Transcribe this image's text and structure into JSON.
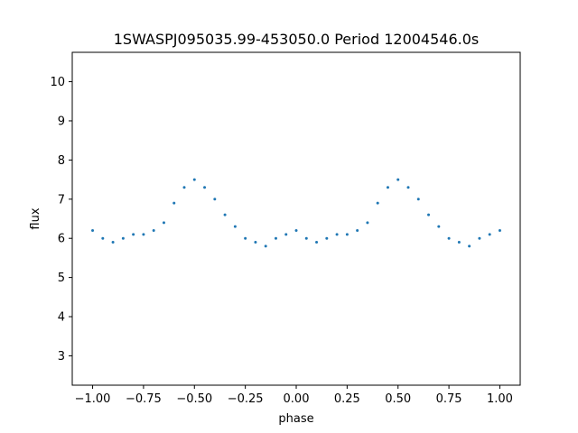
{
  "chart_data": {
    "type": "scatter",
    "title": "1SWASPJ095035.99-453050.0 Period 12004546.0s",
    "xlabel": "phase",
    "ylabel": "flux",
    "xlim": [
      -1.1,
      1.1
    ],
    "ylim": [
      2.25,
      10.75
    ],
    "xticks": [
      -1.0,
      -0.75,
      -0.5,
      -0.25,
      0.0,
      0.25,
      0.5,
      0.75,
      1.0
    ],
    "xtick_labels": [
      "−1.00",
      "−0.75",
      "−0.50",
      "−0.25",
      "0.00",
      "0.25",
      "0.50",
      "0.75",
      "1.00"
    ],
    "yticks": [
      3,
      4,
      5,
      6,
      7,
      8,
      9,
      10
    ],
    "ytick_labels": [
      "3",
      "4",
      "5",
      "6",
      "7",
      "8",
      "9",
      "10"
    ],
    "grid": false,
    "marker_color": "#1f77b4",
    "series": [
      {
        "x": [
          -1.0,
          -0.95,
          -0.9,
          -0.85,
          -0.8,
          -0.75,
          -0.7,
          -0.65,
          -0.6,
          -0.55,
          -0.5,
          -0.45,
          -0.4,
          -0.35,
          -0.3,
          -0.25,
          -0.2,
          -0.15,
          -0.1,
          -0.05,
          0.0,
          0.05,
          0.1,
          0.15,
          0.2,
          0.25,
          0.3,
          0.35,
          0.4,
          0.45,
          0.5,
          0.55,
          0.6,
          0.65,
          0.7,
          0.75,
          0.8,
          0.85,
          0.9,
          0.95,
          1.0
        ],
        "y": [
          6.2,
          6.0,
          5.9,
          6.0,
          6.1,
          6.1,
          6.2,
          6.4,
          6.9,
          7.3,
          7.5,
          7.3,
          7.0,
          6.6,
          6.3,
          6.0,
          5.9,
          5.8,
          6.0,
          6.1,
          6.2,
          6.0,
          5.9,
          6.0,
          6.1,
          6.1,
          6.2,
          6.4,
          6.9,
          7.3,
          7.5,
          7.3,
          7.0,
          6.6,
          6.3,
          6.0,
          5.9,
          5.8,
          6.0,
          6.1,
          6.2
        ]
      }
    ]
  }
}
